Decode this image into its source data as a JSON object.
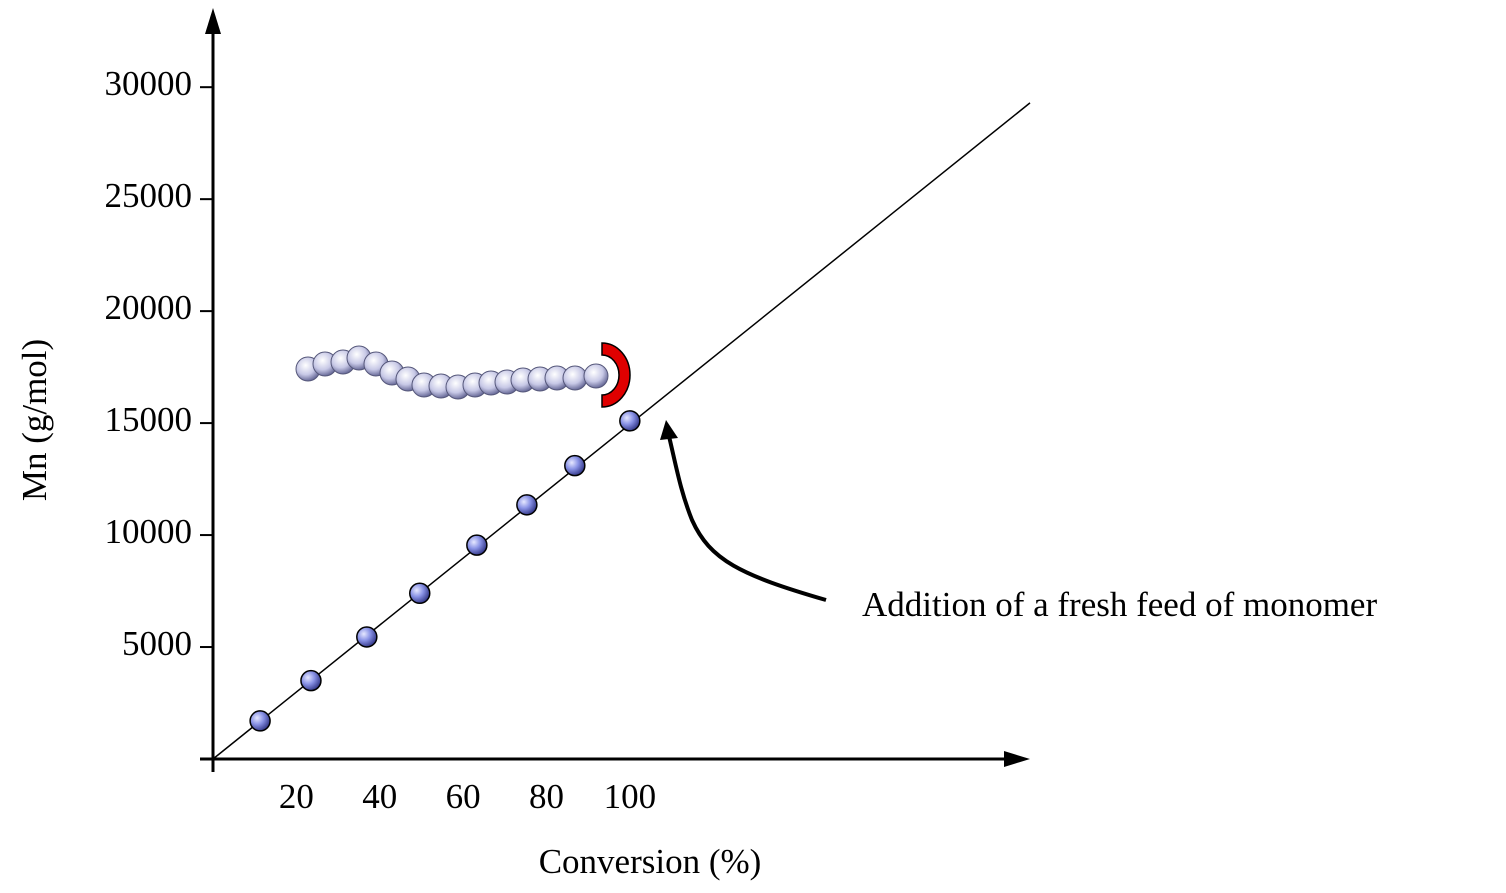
{
  "chart_data": {
    "type": "scatter",
    "x_label": "Conversion (%)",
    "y_label": "Mn (g/mol)",
    "annotation": "Addition of a fresh feed of monomer",
    "xlim": [
      0,
      196
    ],
    "xticks": [
      20,
      40,
      60,
      80,
      100
    ],
    "ylim": [
      0,
      33000
    ],
    "yticks": [
      5000,
      10000,
      15000,
      20000,
      25000,
      30000
    ],
    "points": {
      "color": "#7b86e0",
      "x": [
        11.3,
        23.5,
        36.9,
        49.6,
        63.3,
        75.3,
        86.8,
        100
      ],
      "values": [
        1700,
        3500,
        5450,
        7400,
        9550,
        11350,
        13100,
        15100
      ]
    },
    "trend_line": {
      "color": "#000000",
      "x": [
        0,
        196
      ],
      "values": [
        0,
        29300
      ]
    }
  }
}
